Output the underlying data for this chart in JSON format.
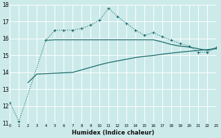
{
  "title": "",
  "xlabel": "Humidex (Indice chaleur)",
  "background_color": "#cceaea",
  "grid_color": "#ffffff",
  "line_color": "#1a6b6b",
  "ylim": [
    11,
    18
  ],
  "xlim": [
    0,
    23
  ],
  "x_values": [
    0,
    1,
    2,
    3,
    4,
    5,
    6,
    7,
    8,
    9,
    10,
    11,
    12,
    13,
    14,
    15,
    16,
    17,
    18,
    19,
    20,
    21,
    22,
    23
  ],
  "s1_dotted_markers": [
    12.2,
    11.1,
    null,
    null,
    15.9,
    16.5,
    16.5,
    16.5,
    16.6,
    16.8,
    17.1,
    17.8,
    17.3,
    16.9,
    16.5,
    16.2,
    16.35,
    16.1,
    15.9,
    15.7,
    15.55,
    15.2,
    15.2,
    15.45
  ],
  "s2_solid_flat": [
    null,
    null,
    null,
    null,
    15.9,
    15.93,
    15.93,
    15.93,
    15.93,
    15.93,
    15.93,
    15.93,
    15.93,
    15.93,
    15.93,
    15.93,
    15.93,
    15.8,
    15.65,
    15.55,
    15.5,
    15.4,
    15.3,
    15.45
  ],
  "s3_solid_rise": [
    null,
    null,
    13.4,
    13.9,
    null,
    null,
    null,
    14.0,
    14.15,
    14.3,
    14.45,
    14.58,
    14.68,
    14.78,
    14.88,
    14.95,
    15.0,
    15.08,
    15.14,
    15.2,
    15.25,
    15.3,
    15.35,
    15.4
  ]
}
